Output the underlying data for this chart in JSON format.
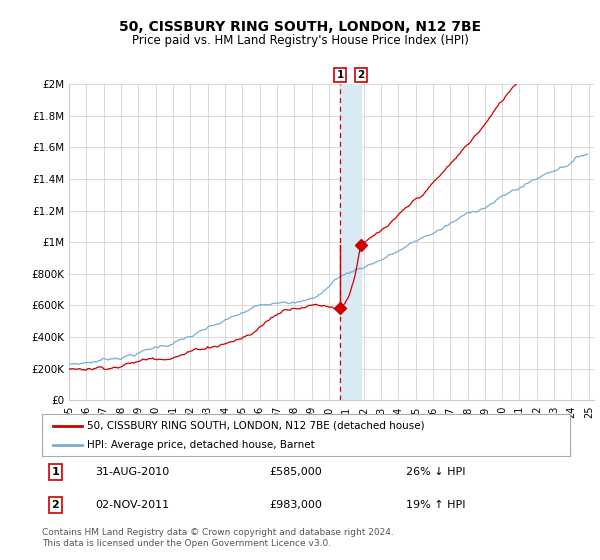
{
  "title": "50, CISSBURY RING SOUTH, LONDON, N12 7BE",
  "subtitle": "Price paid vs. HM Land Registry's House Price Index (HPI)",
  "hpi_color": "#7AADD4",
  "price_color": "#CC0000",
  "marker_color": "#CC0000",
  "dashed_line_color": "#CC0000",
  "shaded_color": "#DAEAF5",
  "background_color": "#FFFFFF",
  "grid_color": "#CCCCCC",
  "ylim": [
    0,
    2000000
  ],
  "sale1_date_label": "31-AUG-2010",
  "sale1_price": 585000,
  "sale1_hpi_pct": "26% ↓ HPI",
  "sale2_date_label": "02-NOV-2011",
  "sale2_price": 983000,
  "sale2_hpi_pct": "19% ↑ HPI",
  "sale1_x": 2010.66,
  "sale2_x": 2011.83,
  "legend_label1": "50, CISSBURY RING SOUTH, LONDON, N12 7BE (detached house)",
  "legend_label2": "HPI: Average price, detached house, Barnet",
  "footnote": "Contains HM Land Registry data © Crown copyright and database right 2024.\nThis data is licensed under the Open Government Licence v3.0.",
  "yticks": [
    0,
    200000,
    400000,
    600000,
    800000,
    1000000,
    1200000,
    1400000,
    1600000,
    1800000,
    2000000
  ],
  "ytick_labels": [
    "£0",
    "£200K",
    "£400K",
    "£600K",
    "£800K",
    "£1M",
    "£1.2M",
    "£1.4M",
    "£1.6M",
    "£1.8M",
    "£2M"
  ]
}
